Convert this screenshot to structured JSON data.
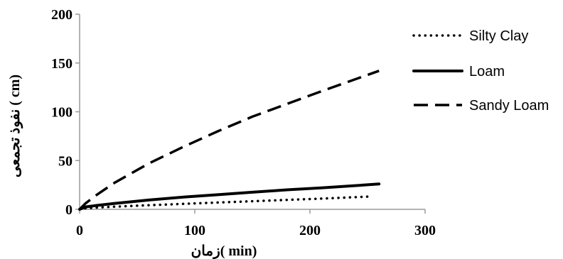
{
  "chart_data": {
    "type": "line",
    "xlabel": "زمان( min)",
    "ylabel": "نفوذ تجمعی ( cm)",
    "xlim": [
      0,
      300
    ],
    "ylim": [
      0,
      200
    ],
    "x_ticks": [
      0,
      100,
      200,
      300
    ],
    "y_ticks": [
      0,
      50,
      100,
      150,
      200
    ],
    "grid": false,
    "legend_position": "right",
    "series": [
      {
        "name": "Silty Clay",
        "style": "dotted",
        "color": "#000000",
        "x": [
          0,
          5,
          15,
          30,
          60,
          90,
          120,
          150,
          180,
          210,
          250
        ],
        "y": [
          0,
          1,
          1.8,
          2.7,
          4.2,
          5.6,
          7,
          8.3,
          9.7,
          11,
          13
        ]
      },
      {
        "name": "Loam",
        "style": "solid",
        "color": "#000000",
        "x": [
          0,
          5,
          15,
          30,
          60,
          90,
          120,
          150,
          180,
          210,
          260
        ],
        "y": [
          0,
          2.5,
          4,
          6,
          9.5,
          12.5,
          15,
          17.5,
          20,
          22,
          26
        ]
      },
      {
        "name": "Sandy Loam",
        "style": "dashed",
        "color": "#000000",
        "x": [
          0,
          5,
          15,
          30,
          60,
          90,
          120,
          150,
          180,
          210,
          260
        ],
        "y": [
          0,
          6,
          15,
          27,
          47,
          64,
          80,
          95,
          108,
          121,
          142
        ]
      }
    ]
  }
}
